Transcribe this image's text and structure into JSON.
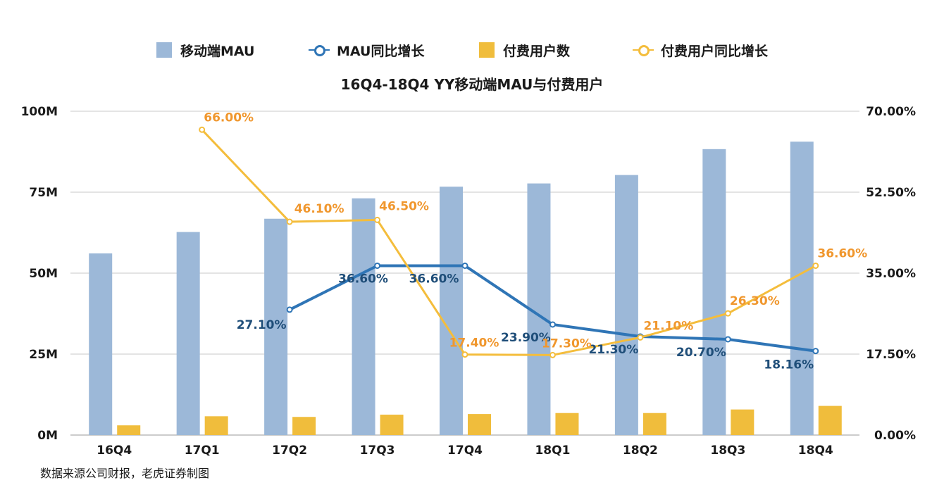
{
  "chart_data": {
    "type": "bar+line",
    "title": "16Q4-18Q4 YY移动端MAU与付费用户",
    "categories": [
      "16Q4",
      "17Q1",
      "17Q2",
      "17Q3",
      "17Q4",
      "18Q1",
      "18Q2",
      "18Q3",
      "18Q4"
    ],
    "left_axis": {
      "ticks": [
        "0M",
        "25M",
        "50M",
        "75M",
        "100M"
      ],
      "min": 0,
      "max": 100
    },
    "right_axis": {
      "ticks": [
        "0.00%",
        "17.50%",
        "35.00%",
        "52.50%",
        "70.00%"
      ],
      "min": 0,
      "max": 70
    },
    "grid": true,
    "legend_position": "top",
    "series": [
      {
        "name": "移动端MAU",
        "kind": "bar",
        "axis": "left",
        "color": "#9cb8d8",
        "values": [
          56.1,
          62.7,
          66.8,
          73.1,
          76.7,
          77.7,
          80.3,
          88.3,
          90.6
        ],
        "labels": null
      },
      {
        "name": "MAU同比增长",
        "kind": "line",
        "axis": "right",
        "color": "#2f75b6",
        "label_color": "#1f4e79",
        "values": [
          null,
          null,
          27.1,
          36.6,
          36.6,
          23.9,
          21.3,
          20.7,
          18.16
        ],
        "labels": [
          null,
          null,
          "27.10%",
          "36.60%",
          "36.60%",
          "23.90%",
          "21.30%",
          "20.70%",
          "18.16%"
        ]
      },
      {
        "name": "付费用户数",
        "kind": "bar",
        "axis": "left",
        "color": "#f0bd3c",
        "values": [
          3.0,
          5.8,
          5.6,
          6.3,
          6.5,
          6.8,
          6.8,
          7.9,
          9.0
        ],
        "labels": null
      },
      {
        "name": "付费用户同比增长",
        "kind": "line",
        "axis": "right",
        "color": "#f4bd3c",
        "label_color": "#f0972e",
        "values": [
          null,
          66.0,
          46.1,
          46.5,
          17.4,
          17.3,
          21.1,
          26.3,
          36.6
        ],
        "labels": [
          null,
          "66.00%",
          "46.10%",
          "46.50%",
          "17.40%",
          "17.30%",
          "21.10%",
          "26.30%",
          "36.60%"
        ]
      }
    ]
  },
  "source_note": "数据来源公司财报，老虎证券制图"
}
